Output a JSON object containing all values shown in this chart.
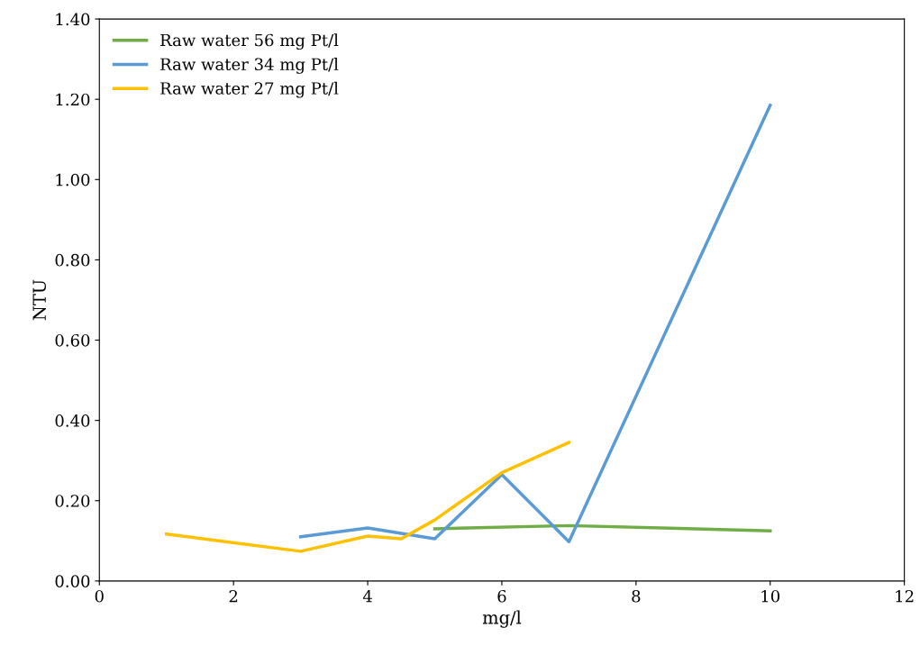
{
  "chart_data": {
    "type": "line",
    "xlabel": "mg/l",
    "ylabel": "NTU",
    "xlim": [
      0,
      12
    ],
    "xticks": [
      0,
      2,
      4,
      6,
      8,
      10,
      12
    ],
    "ylim": [
      0,
      1.4
    ],
    "yticks": [
      {
        "value": 0,
        "label": "0.00"
      },
      {
        "value": 0.2,
        "label": "0.20"
      },
      {
        "value": 0.4,
        "label": "0.40"
      },
      {
        "value": 0.6,
        "label": "0.60"
      },
      {
        "value": 0.8,
        "label": "0.80"
      },
      {
        "value": 1.0,
        "label": "1.00"
      },
      {
        "value": 1.2,
        "label": "1.20"
      },
      {
        "value": 1.4,
        "label": "1.40"
      }
    ],
    "grid": false,
    "legend": "top left",
    "marker": "none",
    "line_style": "solid",
    "series": [
      {
        "name": "Raw water 56 mg Pt/l",
        "color": "#70ad47",
        "x": [
          5,
          7,
          10
        ],
        "values": [
          0.13,
          0.138,
          0.125
        ]
      },
      {
        "name": "Raw water 34 mg Pt/l",
        "color": "#5b9bd5",
        "x": [
          3,
          4,
          5,
          6,
          7,
          10
        ],
        "values": [
          0.11,
          0.132,
          0.105,
          0.265,
          0.098,
          1.185
        ]
      },
      {
        "name": "Raw water 27 mg Pt/l",
        "color": "#ffc000",
        "x": [
          1,
          3,
          4,
          4.5,
          5,
          6,
          7
        ],
        "values": [
          0.117,
          0.074,
          0.112,
          0.105,
          0.152,
          0.27,
          0.345
        ]
      }
    ]
  }
}
